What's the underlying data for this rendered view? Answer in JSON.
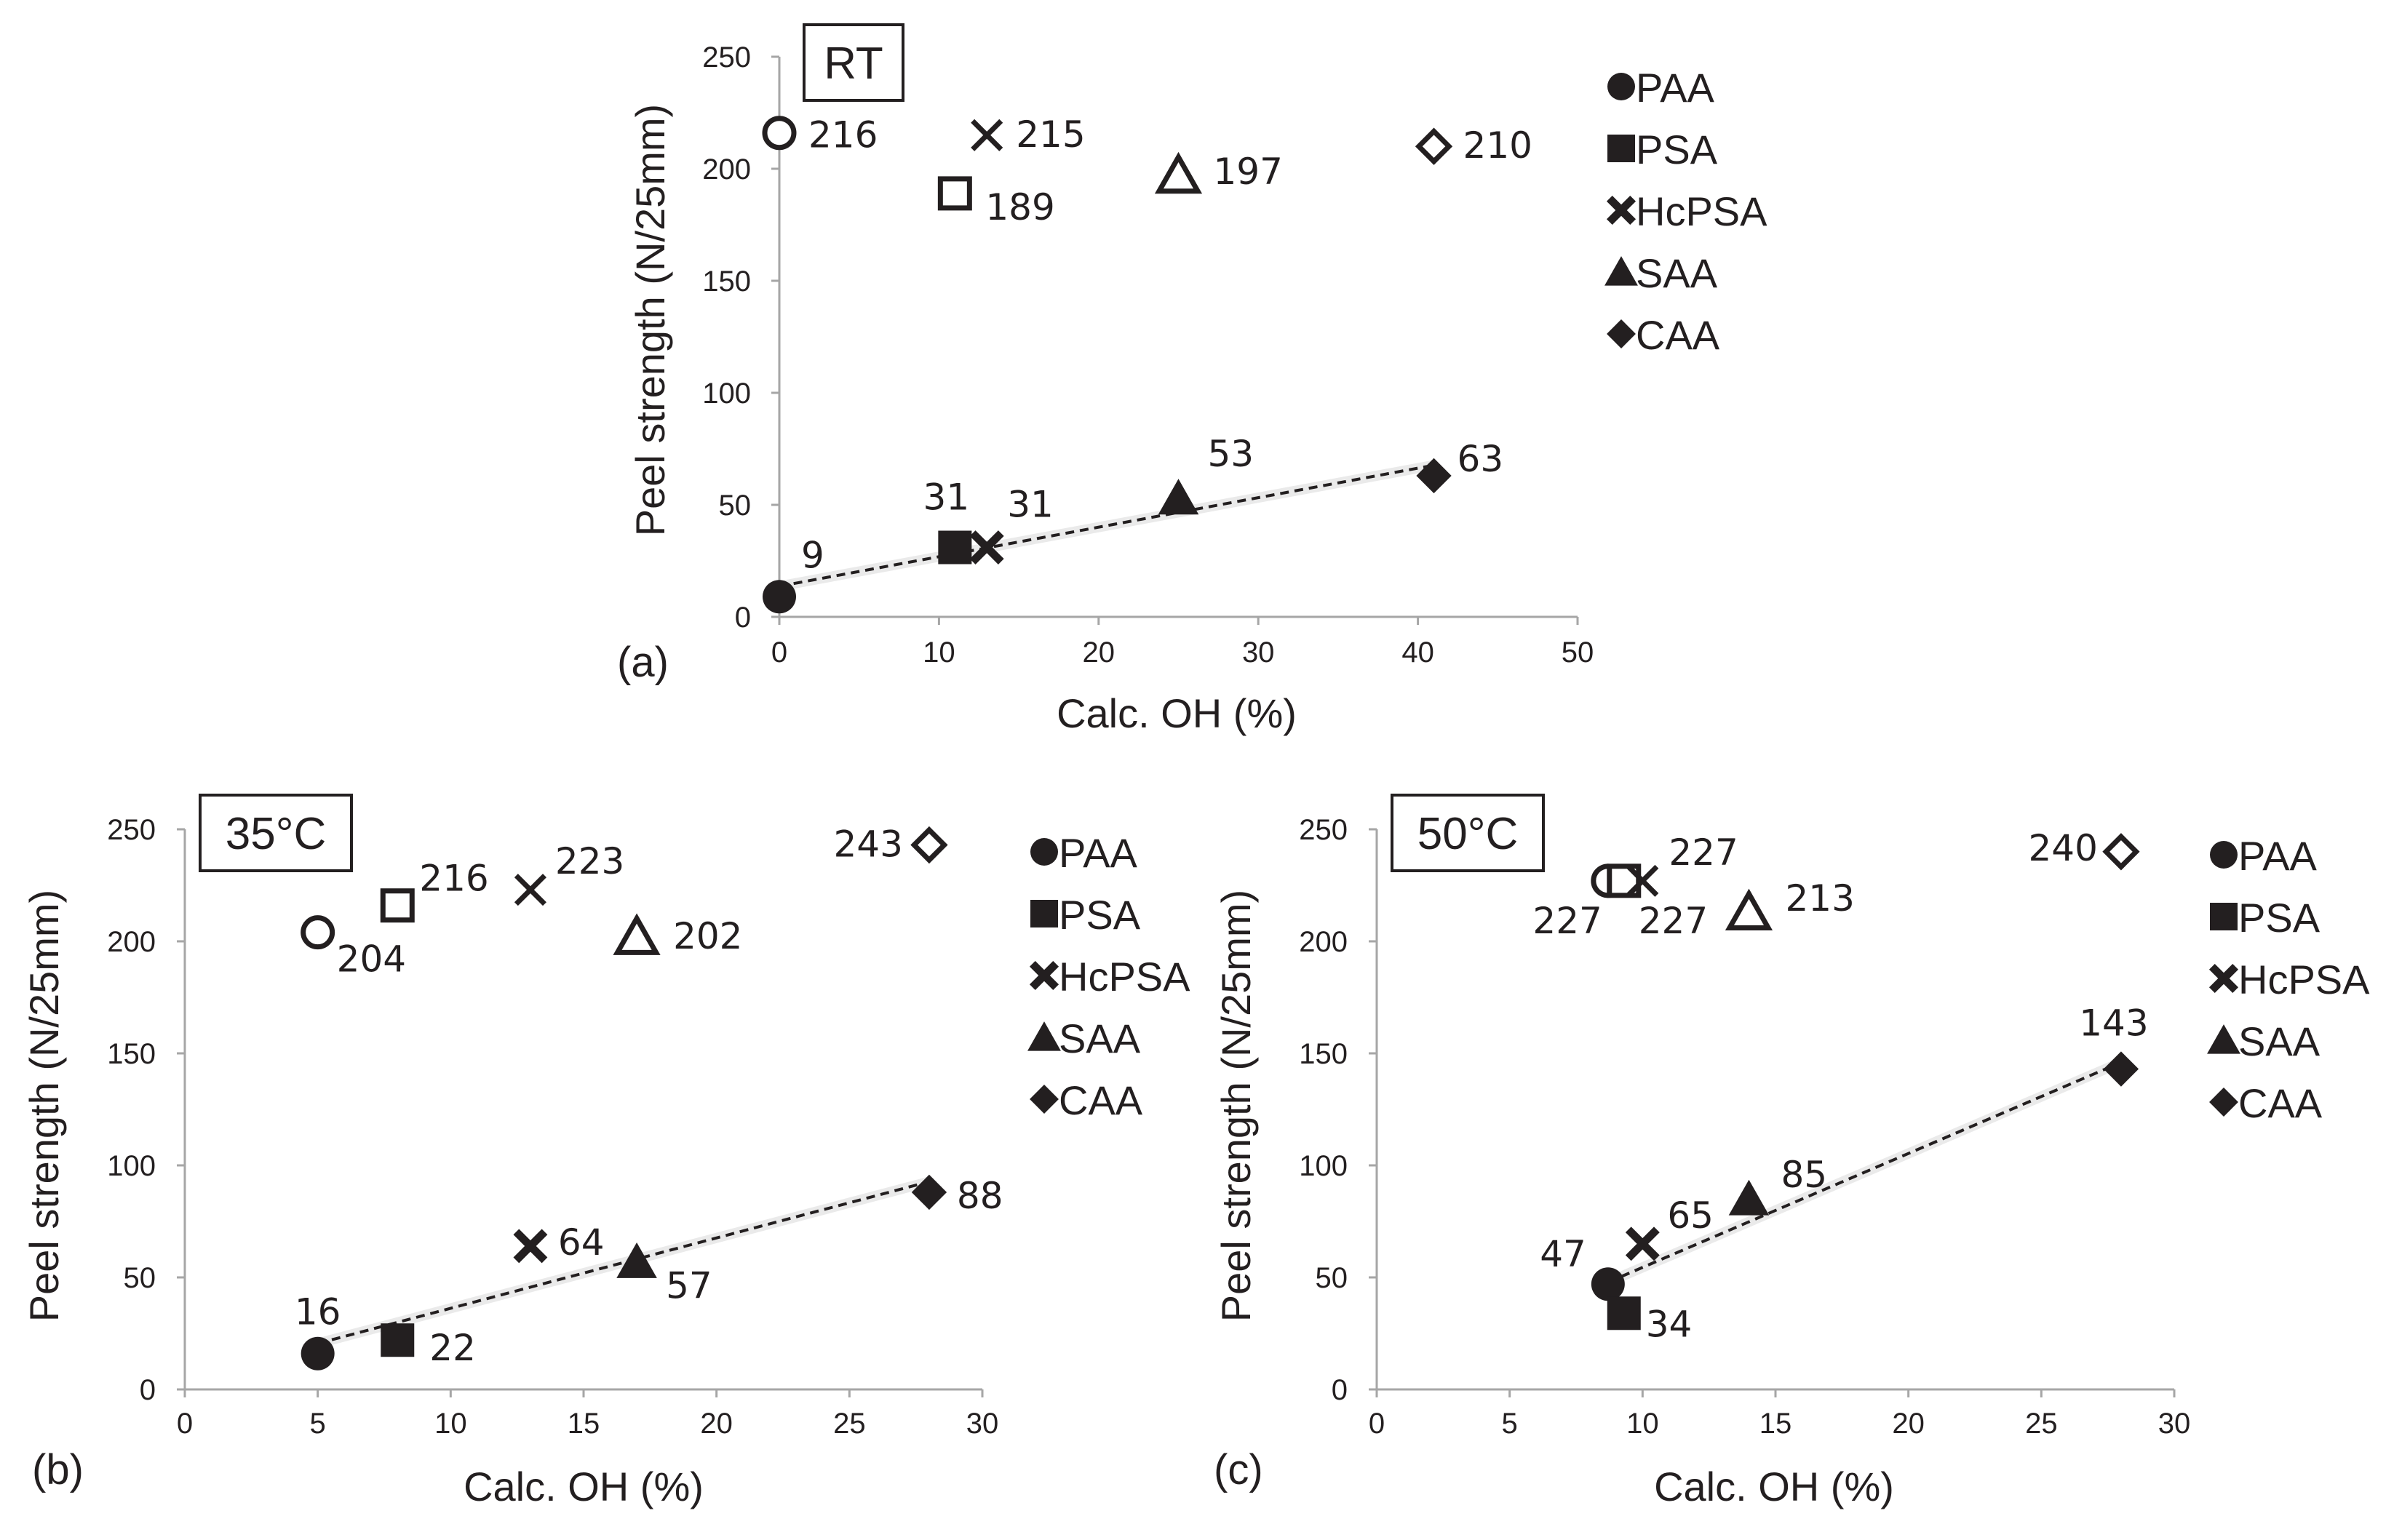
{
  "figure": {
    "background": "#ffffff",
    "ink": "#231f20",
    "axis_color": "#a6a6a6"
  },
  "chart_data": [
    {
      "panel_label": "(a)",
      "condition": "RT",
      "type": "scatter",
      "xlabel": "Calc. OH (%)",
      "ylabel": "Peel strength (N/25mm)",
      "xlim": [
        0,
        50
      ],
      "ylim": [
        0,
        250
      ],
      "xticks": [
        0,
        10,
        20,
        30,
        40,
        50
      ],
      "yticks": [
        0,
        50,
        100,
        150,
        200,
        250
      ],
      "grid": false,
      "legend_placement": "top-right",
      "legend": [
        {
          "label": "PAA",
          "marker": "circle"
        },
        {
          "label": "PSA",
          "marker": "square"
        },
        {
          "label": "HcPSA",
          "marker": "x"
        },
        {
          "label": "SAA",
          "marker": "triangle"
        },
        {
          "label": "CAA",
          "marker": "diamond"
        }
      ],
      "series": [
        {
          "style": "filled",
          "trendline": true,
          "points": [
            {
              "x": 0,
              "y": 9,
              "label": "9",
              "marker": "circle"
            },
            {
              "x": 11,
              "y": 31,
              "label": "31",
              "marker": "square"
            },
            {
              "x": 13,
              "y": 31,
              "label": "31",
              "marker": "x"
            },
            {
              "x": 25,
              "y": 53,
              "label": "53",
              "marker": "triangle"
            },
            {
              "x": 41,
              "y": 63,
              "label": "63",
              "marker": "diamond"
            }
          ]
        },
        {
          "style": "open",
          "trendline": false,
          "points": [
            {
              "x": 0,
              "y": 216,
              "label": "216",
              "marker": "circle"
            },
            {
              "x": 11,
              "y": 189,
              "label": "189",
              "marker": "square"
            },
            {
              "x": 13,
              "y": 215,
              "label": "215",
              "marker": "x"
            },
            {
              "x": 25,
              "y": 197,
              "label": "197",
              "marker": "triangle"
            },
            {
              "x": 41,
              "y": 210,
              "label": "210",
              "marker": "diamond"
            }
          ]
        }
      ]
    },
    {
      "panel_label": "(b)",
      "condition": "35°C",
      "type": "scatter",
      "xlabel": "Calc. OH (%)",
      "ylabel": "Peel strength (N/25mm)",
      "xlim": [
        0,
        30
      ],
      "ylim": [
        0,
        250
      ],
      "xticks": [
        0,
        5,
        10,
        15,
        20,
        25,
        30
      ],
      "yticks": [
        0,
        50,
        100,
        150,
        200,
        250
      ],
      "grid": false,
      "legend_placement": "top-right",
      "legend": [
        {
          "label": "PAA",
          "marker": "circle"
        },
        {
          "label": "PSA",
          "marker": "square"
        },
        {
          "label": "HcPSA",
          "marker": "x"
        },
        {
          "label": "SAA",
          "marker": "triangle"
        },
        {
          "label": "CAA",
          "marker": "diamond"
        }
      ],
      "series": [
        {
          "style": "filled",
          "trendline": true,
          "points": [
            {
              "x": 5,
              "y": 16,
              "label": "16",
              "marker": "circle"
            },
            {
              "x": 8,
              "y": 22,
              "label": "22",
              "marker": "square"
            },
            {
              "x": 13,
              "y": 64,
              "label": "64",
              "marker": "x"
            },
            {
              "x": 17,
              "y": 57,
              "label": "57",
              "marker": "triangle"
            },
            {
              "x": 28,
              "y": 88,
              "label": "88",
              "marker": "diamond"
            }
          ]
        },
        {
          "style": "open",
          "trendline": false,
          "points": [
            {
              "x": 5,
              "y": 204,
              "label": "204",
              "marker": "circle"
            },
            {
              "x": 8,
              "y": 216,
              "label": "216",
              "marker": "square"
            },
            {
              "x": 13,
              "y": 223,
              "label": "223",
              "marker": "x"
            },
            {
              "x": 17,
              "y": 202,
              "label": "202",
              "marker": "triangle"
            },
            {
              "x": 28,
              "y": 243,
              "label": "243",
              "marker": "diamond"
            }
          ]
        }
      ]
    },
    {
      "panel_label": "(c)",
      "condition": "50°C",
      "type": "scatter",
      "xlabel": "Calc. OH (%)",
      "ylabel": "Peel strength (N/25mm)",
      "xlim": [
        0,
        30
      ],
      "ylim": [
        0,
        250
      ],
      "xticks": [
        0,
        5,
        10,
        15,
        20,
        25,
        30
      ],
      "yticks": [
        0,
        50,
        100,
        150,
        200,
        250
      ],
      "grid": false,
      "legend_placement": "top-right",
      "legend": [
        {
          "label": "PAA",
          "marker": "circle"
        },
        {
          "label": "PSA",
          "marker": "square"
        },
        {
          "label": "HcPSA",
          "marker": "x"
        },
        {
          "label": "SAA",
          "marker": "triangle"
        },
        {
          "label": "CAA",
          "marker": "diamond"
        }
      ],
      "series": [
        {
          "style": "filled",
          "trendline": true,
          "points": [
            {
              "x": 8.7,
              "y": 47,
              "label": "47",
              "marker": "circle"
            },
            {
              "x": 9.3,
              "y": 34,
              "label": "34",
              "marker": "square"
            },
            {
              "x": 10,
              "y": 65,
              "label": "65",
              "marker": "x"
            },
            {
              "x": 14,
              "y": 85,
              "label": "85",
              "marker": "triangle"
            },
            {
              "x": 28,
              "y": 143,
              "label": "143",
              "marker": "diamond"
            }
          ]
        },
        {
          "style": "open",
          "trendline": false,
          "points": [
            {
              "x": 8.7,
              "y": 227,
              "label": "227",
              "marker": "circle"
            },
            {
              "x": 9.3,
              "y": 227,
              "label": "227",
              "marker": "square"
            },
            {
              "x": 10,
              "y": 227,
              "label": "227",
              "marker": "x"
            },
            {
              "x": 14,
              "y": 213,
              "label": "213",
              "marker": "triangle"
            },
            {
              "x": 28,
              "y": 240,
              "label": "240",
              "marker": "diamond"
            }
          ]
        }
      ]
    }
  ]
}
